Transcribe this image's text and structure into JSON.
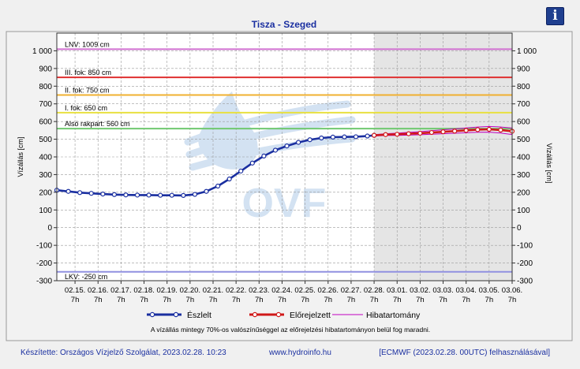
{
  "colors": {
    "frame_border": "#888888",
    "plot_bg": "#ffffff",
    "forecast_bg": "#e5e5e5",
    "observed": "#1a2fa0",
    "forecast": "#d01818",
    "band": "#c000c0",
    "title": "#1a2fa0",
    "footer": "#1a2fa0",
    "watermark": "#c9dcef"
  },
  "info_icon": "info-icon",
  "watermark_text": "OVF",
  "footer": {
    "left": "Készítette: Országos Vízjelző Szolgálat, 2023.02.28. 10:23",
    "mid": "www.hydroinfo.hu",
    "right": "[ECMWF (2023.02.28. 00UTC) felhasználásával]"
  },
  "chart_data": {
    "type": "line",
    "title": "Tisza - Szeged",
    "ylabel": "Vízállás [cm]",
    "ylabel_right": "Vízállás [cm]",
    "ylim": [
      -300,
      1100
    ],
    "yticks": [
      -300,
      -200,
      -100,
      0,
      100,
      200,
      300,
      400,
      500,
      600,
      700,
      800,
      900,
      1000
    ],
    "ytick_labels": [
      "-300",
      "-200",
      "-100",
      "0",
      "100",
      "200",
      "300",
      "400",
      "500",
      "600",
      "700",
      "800",
      "900",
      "1 000"
    ],
    "xlim": [
      "2023-02-14 12:00",
      "2023-03-06 07:00"
    ],
    "xticks": [
      {
        "date": "02.15.",
        "hour": "7h"
      },
      {
        "date": "02.16.",
        "hour": "7h"
      },
      {
        "date": "02.17.",
        "hour": "7h"
      },
      {
        "date": "02.18.",
        "hour": "7h"
      },
      {
        "date": "02.19.",
        "hour": "7h"
      },
      {
        "date": "02.20.",
        "hour": "7h"
      },
      {
        "date": "02.21.",
        "hour": "7h"
      },
      {
        "date": "02.22.",
        "hour": "7h"
      },
      {
        "date": "02.23.",
        "hour": "7h"
      },
      {
        "date": "02.24.",
        "hour": "7h"
      },
      {
        "date": "02.25.",
        "hour": "7h"
      },
      {
        "date": "02.26.",
        "hour": "7h"
      },
      {
        "date": "02.27.",
        "hour": "7h"
      },
      {
        "date": "02.28.",
        "hour": "7h"
      },
      {
        "date": "03.01.",
        "hour": "7h"
      },
      {
        "date": "03.02.",
        "hour": "7h"
      },
      {
        "date": "03.03.",
        "hour": "7h"
      },
      {
        "date": "03.04.",
        "hour": "7h"
      },
      {
        "date": "03.05.",
        "hour": "7h"
      },
      {
        "date": "03.06.",
        "hour": "7h"
      }
    ],
    "forecast_start": "2023-02-28 07:00",
    "thresholds": [
      {
        "label": "LNV: 1009 cm",
        "value": 1009,
        "color": "#d070d0"
      },
      {
        "label": "III. fok: 850 cm",
        "value": 850,
        "color": "#e03030"
      },
      {
        "label": "II. fok: 750 cm",
        "value": 750,
        "color": "#f0b030"
      },
      {
        "label": "I. fok: 650 cm",
        "value": 650,
        "color": "#e8e040"
      },
      {
        "label": "Alsó rakpart: 560 cm",
        "value": 560,
        "color": "#70c870"
      },
      {
        "label": "LKV: -250 cm",
        "value": -250,
        "color": "#9090e0"
      }
    ],
    "series": [
      {
        "name": "Észlelt",
        "color": "#1a2fa0",
        "points": [
          [
            "2023-02-14 12:00",
            212
          ],
          [
            "2023-02-15 00:00",
            205
          ],
          [
            "2023-02-15 12:00",
            198
          ],
          [
            "2023-02-16 00:00",
            194
          ],
          [
            "2023-02-16 12:00",
            190
          ],
          [
            "2023-02-17 00:00",
            187
          ],
          [
            "2023-02-17 12:00",
            185
          ],
          [
            "2023-02-18 00:00",
            184
          ],
          [
            "2023-02-18 12:00",
            184
          ],
          [
            "2023-02-19 00:00",
            183
          ],
          [
            "2023-02-19 12:00",
            183
          ],
          [
            "2023-02-20 00:00",
            182
          ],
          [
            "2023-02-20 12:00",
            188
          ],
          [
            "2023-02-21 00:00",
            205
          ],
          [
            "2023-02-21 12:00",
            235
          ],
          [
            "2023-02-22 00:00",
            275
          ],
          [
            "2023-02-22 12:00",
            320
          ],
          [
            "2023-02-23 00:00",
            365
          ],
          [
            "2023-02-23 12:00",
            405
          ],
          [
            "2023-02-24 00:00",
            438
          ],
          [
            "2023-02-24 12:00",
            462
          ],
          [
            "2023-02-25 00:00",
            482
          ],
          [
            "2023-02-25 12:00",
            497
          ],
          [
            "2023-02-26 00:00",
            507
          ],
          [
            "2023-02-26 12:00",
            512
          ],
          [
            "2023-02-27 00:00",
            513
          ],
          [
            "2023-02-27 12:00",
            514
          ],
          [
            "2023-02-28 00:00",
            518
          ],
          [
            "2023-02-28 07:00",
            522
          ]
        ]
      },
      {
        "name": "Előrejelzett",
        "color": "#d01818",
        "points": [
          [
            "2023-02-28 07:00",
            522
          ],
          [
            "2023-02-28 19:00",
            526
          ],
          [
            "2023-03-01 07:00",
            528
          ],
          [
            "2023-03-01 19:00",
            531
          ],
          [
            "2023-03-02 07:00",
            534
          ],
          [
            "2023-03-02 19:00",
            538
          ],
          [
            "2023-03-03 07:00",
            542
          ],
          [
            "2023-03-03 19:00",
            546
          ],
          [
            "2023-03-04 07:00",
            550
          ],
          [
            "2023-03-04 19:00",
            554
          ],
          [
            "2023-03-05 07:00",
            556
          ],
          [
            "2023-03-05 19:00",
            552
          ],
          [
            "2023-03-06 07:00",
            545
          ]
        ]
      },
      {
        "name": "Hibatartomány",
        "color": "#c000c0"
      }
    ],
    "legend": {
      "position": "bottom"
    },
    "note": "A vízállás mintegy 70%-os valószínűséggel az előrejelzési hibatartományon belül fog maradni."
  }
}
